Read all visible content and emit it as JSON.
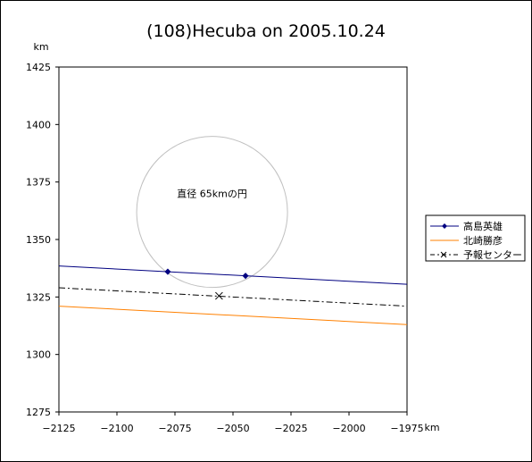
{
  "chart_data": {
    "type": "line",
    "title": "(108)Hecuba on 2005.10.24",
    "xlabel": "km",
    "ylabel": "km",
    "xlim": [
      -2125,
      -1975
    ],
    "ylim": [
      1275,
      1425
    ],
    "x_ticks": [
      -2125,
      -2100,
      -2075,
      -2050,
      -2025,
      -2000,
      -1975
    ],
    "y_ticks": [
      1275,
      1300,
      1325,
      1350,
      1375,
      1400,
      1425
    ],
    "x_tick_labels": [
      "−2125",
      "−2100",
      "−2075",
      "−2050",
      "−2025",
      "−2000",
      "−1975"
    ],
    "y_tick_labels": [
      "1275",
      "1300",
      "1325",
      "1350",
      "1375",
      "1400",
      "1425"
    ],
    "grid": false,
    "legend_position": "right",
    "series": [
      {
        "name": "高島英雄",
        "color": "#000080",
        "style": "solid",
        "line": [
          [
            -2125,
            1338.5
          ],
          [
            -1975,
            1330.5
          ]
        ],
        "markers": [
          [
            -2078.1,
            1336
          ],
          [
            -2044.6,
            1334.2
          ]
        ]
      },
      {
        "name": "北崎勝彦",
        "color": "#ff8000",
        "style": "solid",
        "line": [
          [
            -2125,
            1321
          ],
          [
            -1975,
            1313
          ]
        ]
      },
      {
        "name": "予報センター",
        "color": "#000000",
        "style": "dashdot",
        "line": [
          [
            -2125,
            1329
          ],
          [
            -1975,
            1321
          ]
        ],
        "center": [
          -2056,
          1325.5
        ]
      }
    ],
    "circle": {
      "center": [
        -2059,
        1362
      ],
      "radius": 32.5,
      "color": "#c0c0c0",
      "label": "直径 65kmの円",
      "label_at": [
        -2059,
        1368.5
      ]
    }
  }
}
